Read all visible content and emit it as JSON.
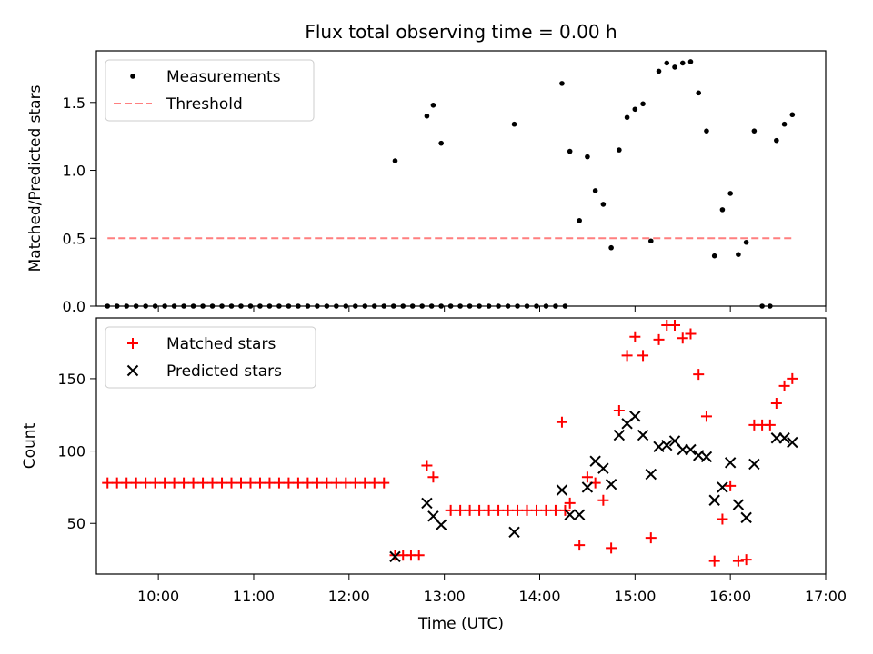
{
  "figure": {
    "title": "Flux total observing time = 0.00 h"
  },
  "chart_data": [
    {
      "type": "scatter",
      "ylabel": "Matched/Predicted stars",
      "xlim": [
        "09:21",
        "17:00"
      ],
      "ylim": [
        0,
        1.88
      ],
      "yticks": [
        0.0,
        0.5,
        1.0,
        1.5
      ],
      "ytick_labels": [
        "0.0",
        "0.5",
        "1.0",
        "1.5"
      ],
      "legend": {
        "placement": "top-left",
        "entries": [
          "Measurements",
          "Threshold"
        ]
      },
      "series": [
        {
          "name": "Measurements",
          "style": "dot",
          "color": "#000000",
          "points": [
            [
              "09:28",
              0
            ],
            [
              "09:34",
              0
            ],
            [
              "09:40",
              0
            ],
            [
              "09:46",
              0
            ],
            [
              "09:52",
              0
            ],
            [
              "09:58",
              0
            ],
            [
              "10:04",
              0
            ],
            [
              "10:10",
              0
            ],
            [
              "10:16",
              0
            ],
            [
              "10:22",
              0
            ],
            [
              "10:28",
              0
            ],
            [
              "10:34",
              0
            ],
            [
              "10:40",
              0
            ],
            [
              "10:46",
              0
            ],
            [
              "10:52",
              0
            ],
            [
              "10:58",
              0
            ],
            [
              "11:04",
              0
            ],
            [
              "11:10",
              0
            ],
            [
              "11:16",
              0
            ],
            [
              "11:22",
              0
            ],
            [
              "11:28",
              0
            ],
            [
              "11:34",
              0
            ],
            [
              "11:40",
              0
            ],
            [
              "11:46",
              0
            ],
            [
              "11:52",
              0
            ],
            [
              "11:58",
              0
            ],
            [
              "12:04",
              0
            ],
            [
              "12:10",
              0
            ],
            [
              "12:16",
              0
            ],
            [
              "12:22",
              0
            ],
            [
              "12:28",
              0
            ],
            [
              "12:34",
              0
            ],
            [
              "12:40",
              0
            ],
            [
              "12:46",
              0
            ],
            [
              "12:52",
              0
            ],
            [
              "12:58",
              0
            ],
            [
              "13:04",
              0
            ],
            [
              "13:10",
              0
            ],
            [
              "13:16",
              0
            ],
            [
              "13:22",
              0
            ],
            [
              "13:28",
              0
            ],
            [
              "13:34",
              0
            ],
            [
              "13:40",
              0
            ],
            [
              "13:46",
              0
            ],
            [
              "13:52",
              0
            ],
            [
              "13:58",
              0
            ],
            [
              "14:04",
              0
            ],
            [
              "14:10",
              0
            ],
            [
              "14:16",
              0
            ],
            [
              "12:29",
              1.07
            ],
            [
              "12:49",
              1.4
            ],
            [
              "12:53",
              1.48
            ],
            [
              "12:58",
              1.2
            ],
            [
              "13:44",
              1.34
            ],
            [
              "14:14",
              1.64
            ],
            [
              "14:19",
              1.14
            ],
            [
              "14:25",
              0.63
            ],
            [
              "14:30",
              1.1
            ],
            [
              "14:35",
              0.85
            ],
            [
              "14:40",
              0.75
            ],
            [
              "14:45",
              0.43
            ],
            [
              "14:50",
              1.15
            ],
            [
              "14:55",
              1.39
            ],
            [
              "15:00",
              1.45
            ],
            [
              "15:05",
              1.49
            ],
            [
              "15:10",
              0.48
            ],
            [
              "15:15",
              1.73
            ],
            [
              "15:20",
              1.79
            ],
            [
              "15:25",
              1.76
            ],
            [
              "15:30",
              1.79
            ],
            [
              "15:35",
              1.8
            ],
            [
              "15:40",
              1.57
            ],
            [
              "15:45",
              1.29
            ],
            [
              "15:50",
              0.37
            ],
            [
              "15:55",
              0.71
            ],
            [
              "16:00",
              0.83
            ],
            [
              "16:05",
              0.38
            ],
            [
              "16:10",
              0.47
            ],
            [
              "16:15",
              1.29
            ],
            [
              "16:20",
              0
            ],
            [
              "16:25",
              0
            ],
            [
              "16:29",
              1.22
            ],
            [
              "16:34",
              1.34
            ],
            [
              "16:39",
              1.41
            ]
          ]
        },
        {
          "name": "Threshold",
          "style": "dashed-line",
          "color": "#ff7f7f",
          "x": [
            "09:28",
            "16:39"
          ],
          "y": [
            0.5,
            0.5
          ]
        }
      ]
    },
    {
      "type": "scatter",
      "xlabel": "Time (UTC)",
      "ylabel": "Count",
      "xlim": [
        "09:21",
        "17:00"
      ],
      "ylim": [
        15,
        192
      ],
      "xticks": [
        "10:00",
        "11:00",
        "12:00",
        "13:00",
        "14:00",
        "15:00",
        "16:00",
        "17:00"
      ],
      "yticks": [
        50,
        100,
        150
      ],
      "ytick_labels": [
        "50",
        "100",
        "150"
      ],
      "legend": {
        "placement": "top-left",
        "entries": [
          "Matched stars",
          "Predicted stars"
        ]
      },
      "series": [
        {
          "name": "Matched stars",
          "style": "plus",
          "color": "#ff0000",
          "points": [
            [
              "09:28",
              78
            ],
            [
              "09:34",
              78
            ],
            [
              "09:40",
              78
            ],
            [
              "09:46",
              78
            ],
            [
              "09:52",
              78
            ],
            [
              "09:58",
              78
            ],
            [
              "10:04",
              78
            ],
            [
              "10:10",
              78
            ],
            [
              "10:16",
              78
            ],
            [
              "10:22",
              78
            ],
            [
              "10:28",
              78
            ],
            [
              "10:34",
              78
            ],
            [
              "10:40",
              78
            ],
            [
              "10:46",
              78
            ],
            [
              "10:52",
              78
            ],
            [
              "10:58",
              78
            ],
            [
              "11:04",
              78
            ],
            [
              "11:10",
              78
            ],
            [
              "11:16",
              78
            ],
            [
              "11:22",
              78
            ],
            [
              "11:28",
              78
            ],
            [
              "11:34",
              78
            ],
            [
              "11:40",
              78
            ],
            [
              "11:46",
              78
            ],
            [
              "11:52",
              78
            ],
            [
              "11:58",
              78
            ],
            [
              "12:04",
              78
            ],
            [
              "12:10",
              78
            ],
            [
              "12:16",
              78
            ],
            [
              "12:22",
              78
            ],
            [
              "12:29",
              28
            ],
            [
              "12:34",
              28
            ],
            [
              "12:39",
              28
            ],
            [
              "12:44",
              28
            ],
            [
              "12:49",
              90
            ],
            [
              "12:53",
              82
            ],
            [
              "13:04",
              59
            ],
            [
              "13:10",
              59
            ],
            [
              "13:16",
              59
            ],
            [
              "13:22",
              59
            ],
            [
              "13:28",
              59
            ],
            [
              "13:34",
              59
            ],
            [
              "13:40",
              59
            ],
            [
              "13:46",
              59
            ],
            [
              "13:52",
              59
            ],
            [
              "13:58",
              59
            ],
            [
              "14:04",
              59
            ],
            [
              "14:10",
              59
            ],
            [
              "14:16",
              59
            ],
            [
              "14:14",
              120
            ],
            [
              "14:19",
              64
            ],
            [
              "14:25",
              35
            ],
            [
              "14:30",
              82
            ],
            [
              "14:35",
              78
            ],
            [
              "14:40",
              66
            ],
            [
              "14:45",
              33
            ],
            [
              "14:50",
              128
            ],
            [
              "14:55",
              166
            ],
            [
              "15:00",
              179
            ],
            [
              "15:05",
              166
            ],
            [
              "15:10",
              40
            ],
            [
              "15:15",
              177
            ],
            [
              "15:20",
              187
            ],
            [
              "15:25",
              187
            ],
            [
              "15:30",
              178
            ],
            [
              "15:35",
              181
            ],
            [
              "15:40",
              153
            ],
            [
              "15:45",
              124
            ],
            [
              "15:50",
              24
            ],
            [
              "15:55",
              53
            ],
            [
              "16:00",
              76
            ],
            [
              "16:05",
              24
            ],
            [
              "16:10",
              25
            ],
            [
              "16:15",
              118
            ],
            [
              "16:20",
              118
            ],
            [
              "16:25",
              118
            ],
            [
              "16:29",
              133
            ],
            [
              "16:34",
              145
            ],
            [
              "16:39",
              150
            ]
          ]
        },
        {
          "name": "Predicted stars",
          "style": "cross",
          "color": "#000000",
          "points": [
            [
              "12:29",
              27
            ],
            [
              "12:49",
              64
            ],
            [
              "12:53",
              55
            ],
            [
              "12:58",
              49
            ],
            [
              "13:44",
              44
            ],
            [
              "14:14",
              73
            ],
            [
              "14:19",
              56
            ],
            [
              "14:25",
              56
            ],
            [
              "14:30",
              75
            ],
            [
              "14:35",
              93
            ],
            [
              "14:40",
              88
            ],
            [
              "14:45",
              77
            ],
            [
              "14:50",
              111
            ],
            [
              "14:55",
              119
            ],
            [
              "15:00",
              124
            ],
            [
              "15:05",
              111
            ],
            [
              "15:10",
              84
            ],
            [
              "15:15",
              103
            ],
            [
              "15:20",
              104
            ],
            [
              "15:25",
              107
            ],
            [
              "15:30",
              101
            ],
            [
              "15:35",
              101
            ],
            [
              "15:40",
              97
            ],
            [
              "15:45",
              96
            ],
            [
              "15:50",
              66
            ],
            [
              "15:55",
              75
            ],
            [
              "16:00",
              92
            ],
            [
              "16:05",
              63
            ],
            [
              "16:10",
              54
            ],
            [
              "16:15",
              91
            ],
            [
              "16:29",
              109
            ],
            [
              "16:34",
              109
            ],
            [
              "16:39",
              106
            ]
          ]
        }
      ]
    }
  ]
}
